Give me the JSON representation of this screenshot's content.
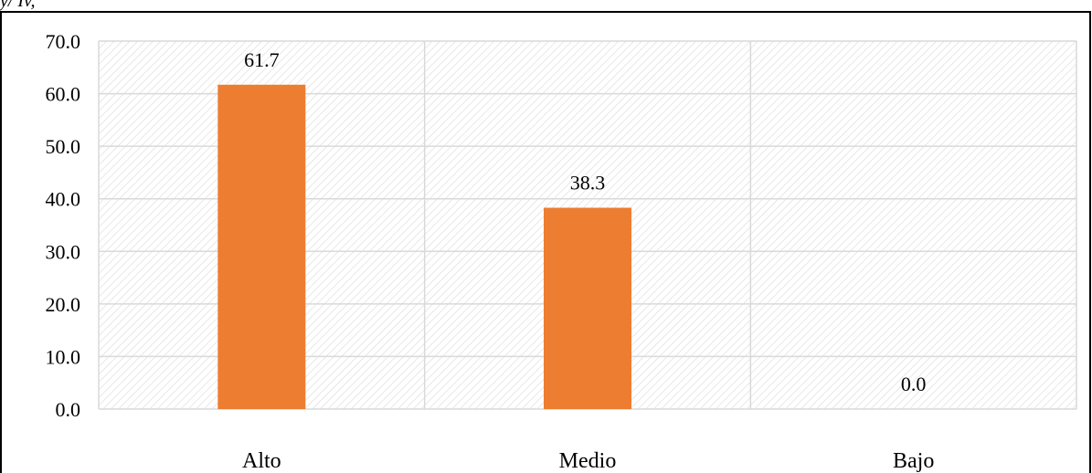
{
  "header_fragment": "y/ Iv,",
  "chart_data": {
    "type": "bar",
    "categories": [
      "Alto",
      "Medio",
      "Bajo"
    ],
    "values": [
      61.7,
      38.3,
      0.0
    ],
    "value_labels": [
      "61.7",
      "38.3",
      "0.0"
    ],
    "y_ticks": [
      "0.0",
      "10.0",
      "20.0",
      "30.0",
      "40.0",
      "50.0",
      "60.0",
      "70.0"
    ],
    "ylim": [
      0,
      70
    ],
    "bar_color": "#ED7D31",
    "grid": true,
    "plot_background": "hatched",
    "legend": "none"
  }
}
